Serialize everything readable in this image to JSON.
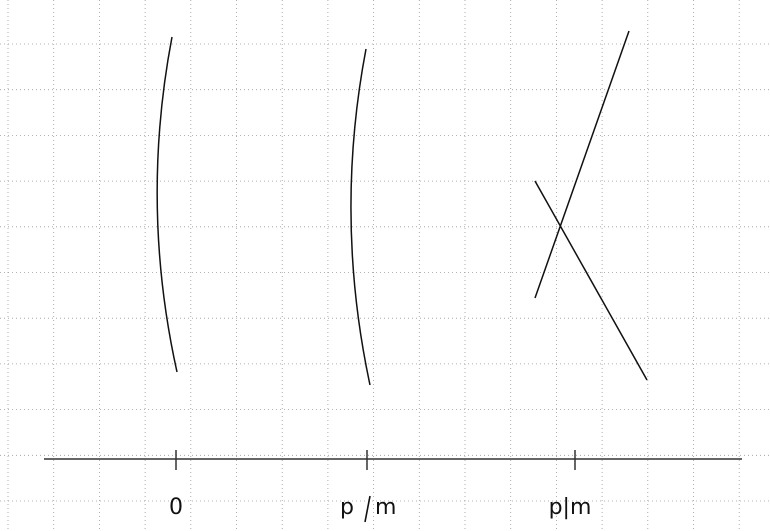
{
  "labels": {
    "zero": "0",
    "not_divides_p": "p",
    "not_divides_m": "m",
    "divides": "p|m"
  },
  "colors": {
    "grid": "#9a9a9a",
    "ink": "#111111",
    "background": "#ffffff"
  }
}
